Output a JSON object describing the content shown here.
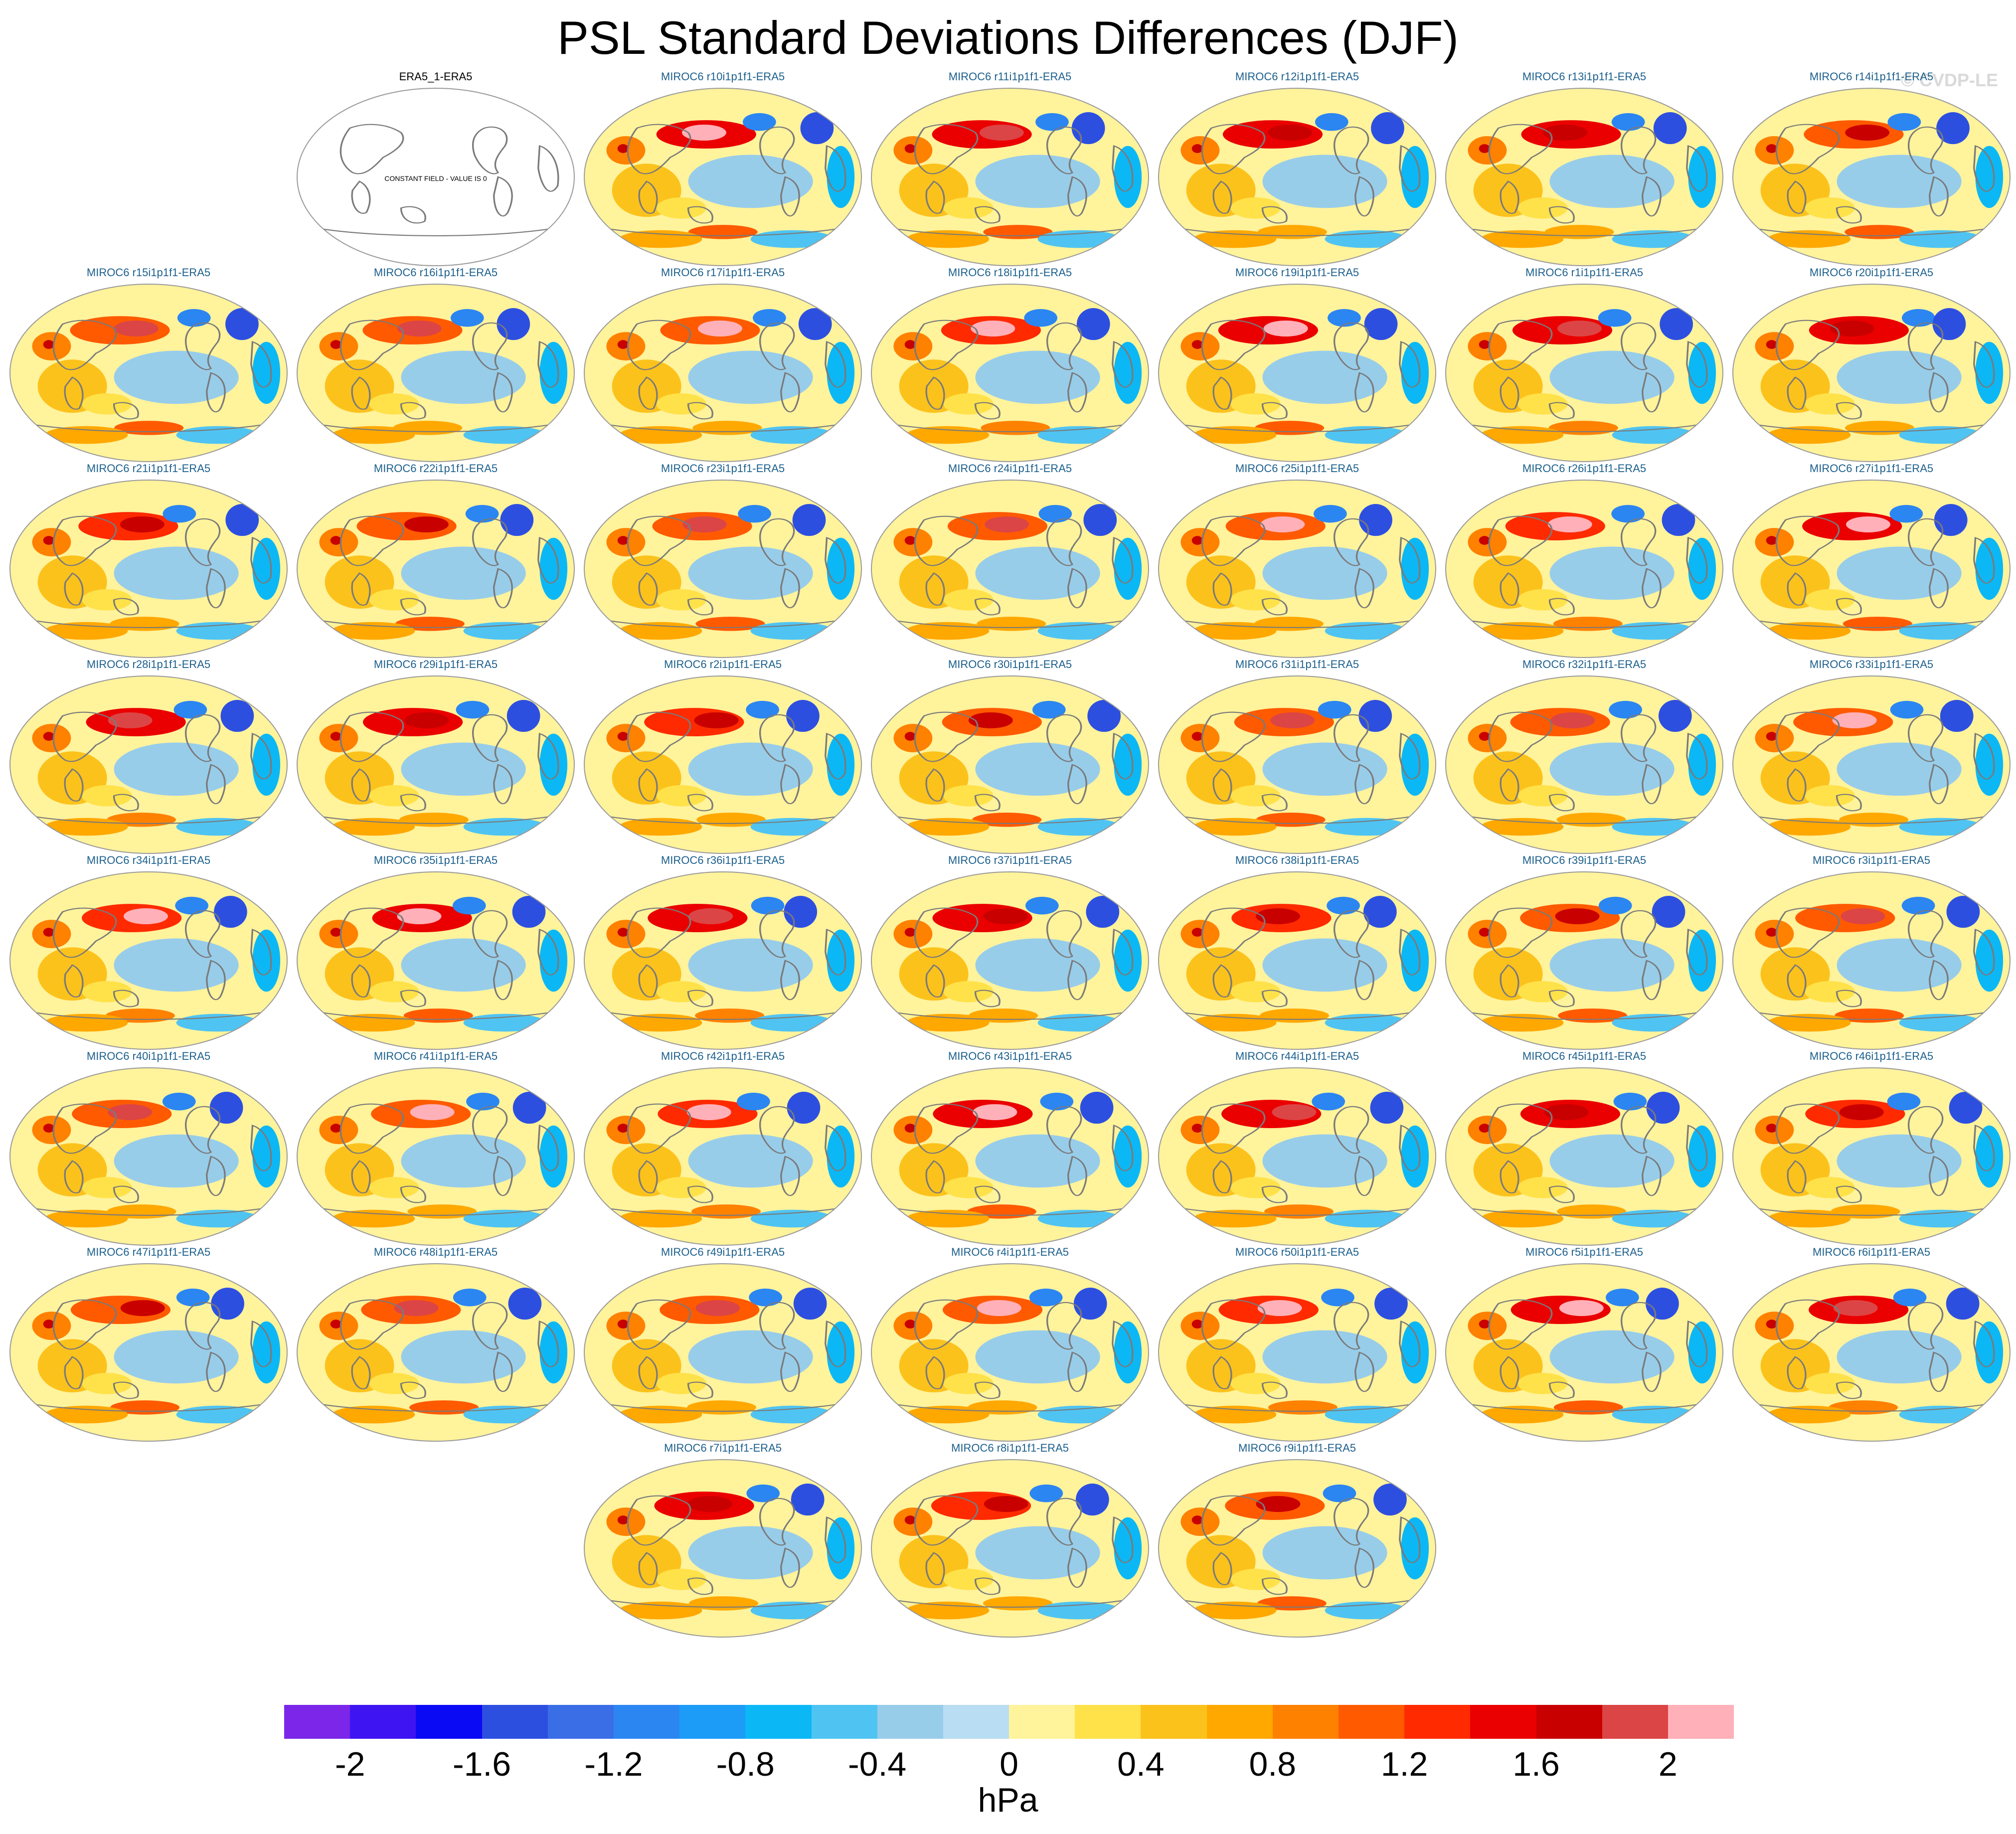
{
  "title": "PSL Standard Deviations Differences (DJF)",
  "copyright": "© CVDP-LE",
  "colorbar": {
    "units": "hPa",
    "colors": [
      "#7b26e8",
      "#3f14f2",
      "#0a0af5",
      "#2d4fe0",
      "#3a6ee6",
      "#2b86f2",
      "#1c9cf7",
      "#0bb8f5",
      "#4fc4f2",
      "#98cdea",
      "#b9ddf2",
      "#fff39c",
      "#ffe24a",
      "#fcc21c",
      "#ffa800",
      "#ff8100",
      "#ff5a00",
      "#ff2a00",
      "#ea0000",
      "#c90000",
      "#dc4545",
      "#ffb0b8"
    ],
    "ticks": [
      "-2",
      "-1.6",
      "-1.2",
      "-0.8",
      "-0.4",
      "0",
      "0.4",
      "0.8",
      "1.2",
      "1.6",
      "2"
    ]
  },
  "chart_data": {
    "type": "heatmap",
    "title": "PSL Standard Deviations Differences (DJF)",
    "variable": "PSL",
    "season": "DJF",
    "units": "hPa",
    "color_levels": [
      -2.2,
      -2.0,
      -1.8,
      -1.6,
      -1.4,
      -1.2,
      -1.0,
      -0.8,
      -0.6,
      -0.4,
      -0.2,
      0,
      0.2,
      0.4,
      0.6,
      0.8,
      1.0,
      1.2,
      1.4,
      1.6,
      1.8,
      2.0,
      2.2
    ],
    "panels": [
      {
        "title": "ERA5_1-ERA5",
        "note": "CONSTANT FIELD - VALUE IS 0",
        "constant": true
      },
      {
        "title": "MIROC6 r10i1p1f1-ERA5"
      },
      {
        "title": "MIROC6 r11i1p1f1-ERA5"
      },
      {
        "title": "MIROC6 r12i1p1f1-ERA5"
      },
      {
        "title": "MIROC6 r13i1p1f1-ERA5"
      },
      {
        "title": "MIROC6 r14i1p1f1-ERA5"
      },
      {
        "title": "MIROC6 r15i1p1f1-ERA5"
      },
      {
        "title": "MIROC6 r16i1p1f1-ERA5"
      },
      {
        "title": "MIROC6 r17i1p1f1-ERA5"
      },
      {
        "title": "MIROC6 r18i1p1f1-ERA5"
      },
      {
        "title": "MIROC6 r19i1p1f1-ERA5"
      },
      {
        "title": "MIROC6 r1i1p1f1-ERA5"
      },
      {
        "title": "MIROC6 r20i1p1f1-ERA5"
      },
      {
        "title": "MIROC6 r21i1p1f1-ERA5"
      },
      {
        "title": "MIROC6 r22i1p1f1-ERA5"
      },
      {
        "title": "MIROC6 r23i1p1f1-ERA5"
      },
      {
        "title": "MIROC6 r24i1p1f1-ERA5"
      },
      {
        "title": "MIROC6 r25i1p1f1-ERA5"
      },
      {
        "title": "MIROC6 r26i1p1f1-ERA5"
      },
      {
        "title": "MIROC6 r27i1p1f1-ERA5"
      },
      {
        "title": "MIROC6 r28i1p1f1-ERA5"
      },
      {
        "title": "MIROC6 r29i1p1f1-ERA5"
      },
      {
        "title": "MIROC6 r2i1p1f1-ERA5"
      },
      {
        "title": "MIROC6 r30i1p1f1-ERA5"
      },
      {
        "title": "MIROC6 r31i1p1f1-ERA5"
      },
      {
        "title": "MIROC6 r32i1p1f1-ERA5"
      },
      {
        "title": "MIROC6 r33i1p1f1-ERA5"
      },
      {
        "title": "MIROC6 r34i1p1f1-ERA5"
      },
      {
        "title": "MIROC6 r35i1p1f1-ERA5"
      },
      {
        "title": "MIROC6 r36i1p1f1-ERA5"
      },
      {
        "title": "MIROC6 r37i1p1f1-ERA5"
      },
      {
        "title": "MIROC6 r38i1p1f1-ERA5"
      },
      {
        "title": "MIROC6 r39i1p1f1-ERA5"
      },
      {
        "title": "MIROC6 r3i1p1f1-ERA5"
      },
      {
        "title": "MIROC6 r40i1p1f1-ERA5"
      },
      {
        "title": "MIROC6 r41i1p1f1-ERA5"
      },
      {
        "title": "MIROC6 r42i1p1f1-ERA5"
      },
      {
        "title": "MIROC6 r43i1p1f1-ERA5"
      },
      {
        "title": "MIROC6 r44i1p1f1-ERA5"
      },
      {
        "title": "MIROC6 r45i1p1f1-ERA5"
      },
      {
        "title": "MIROC6 r46i1p1f1-ERA5"
      },
      {
        "title": "MIROC6 r47i1p1f1-ERA5"
      },
      {
        "title": "MIROC6 r48i1p1f1-ERA5"
      },
      {
        "title": "MIROC6 r49i1p1f1-ERA5"
      },
      {
        "title": "MIROC6 r4i1p1f1-ERA5"
      },
      {
        "title": "MIROC6 r50i1p1f1-ERA5"
      },
      {
        "title": "MIROC6 r5i1p1f1-ERA5"
      },
      {
        "title": "MIROC6 r6i1p1f1-ERA5"
      },
      {
        "title": "MIROC6 r7i1p1f1-ERA5"
      },
      {
        "title": "MIROC6 r8i1p1f1-ERA5"
      },
      {
        "title": "MIROC6 r9i1p1f1-ERA5"
      }
    ]
  }
}
